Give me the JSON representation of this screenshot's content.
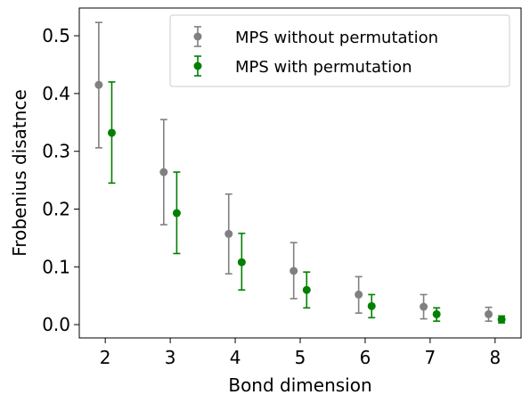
{
  "chart_data": {
    "type": "scatter",
    "xlabel": "Bond dimension",
    "ylabel": "Frobenius disatnce",
    "x_ticks": [
      2,
      3,
      4,
      5,
      6,
      7,
      8
    ],
    "y_ticks": [
      "0.0",
      "0.1",
      "0.2",
      "0.3",
      "0.4",
      "0.5"
    ],
    "xlim": [
      1.6,
      8.4
    ],
    "ylim": [
      -0.023,
      0.548
    ],
    "legend_position": "top-right",
    "grid": false,
    "series": [
      {
        "name": "MPS without permutation",
        "color": "#808080",
        "x_offset": -0.1,
        "points": [
          {
            "x": 2,
            "y": 0.415,
            "lower": 0.306,
            "upper": 0.523
          },
          {
            "x": 3,
            "y": 0.264,
            "lower": 0.173,
            "upper": 0.355
          },
          {
            "x": 4,
            "y": 0.157,
            "lower": 0.088,
            "upper": 0.226
          },
          {
            "x": 5,
            "y": 0.093,
            "lower": 0.045,
            "upper": 0.142
          },
          {
            "x": 6,
            "y": 0.052,
            "lower": 0.02,
            "upper": 0.083
          },
          {
            "x": 7,
            "y": 0.031,
            "lower": 0.01,
            "upper": 0.052
          },
          {
            "x": 8,
            "y": 0.018,
            "lower": 0.006,
            "upper": 0.03
          }
        ]
      },
      {
        "name": "MPS with permutation",
        "color": "#008000",
        "x_offset": 0.1,
        "points": [
          {
            "x": 2,
            "y": 0.332,
            "lower": 0.245,
            "upper": 0.42
          },
          {
            "x": 3,
            "y": 0.193,
            "lower": 0.123,
            "upper": 0.264
          },
          {
            "x": 4,
            "y": 0.108,
            "lower": 0.06,
            "upper": 0.158
          },
          {
            "x": 5,
            "y": 0.06,
            "lower": 0.029,
            "upper": 0.091
          },
          {
            "x": 6,
            "y": 0.032,
            "lower": 0.012,
            "upper": 0.052
          },
          {
            "x": 7,
            "y": 0.018,
            "lower": 0.006,
            "upper": 0.029
          },
          {
            "x": 8,
            "y": 0.009,
            "lower": 0.003,
            "upper": 0.015
          }
        ]
      }
    ]
  }
}
